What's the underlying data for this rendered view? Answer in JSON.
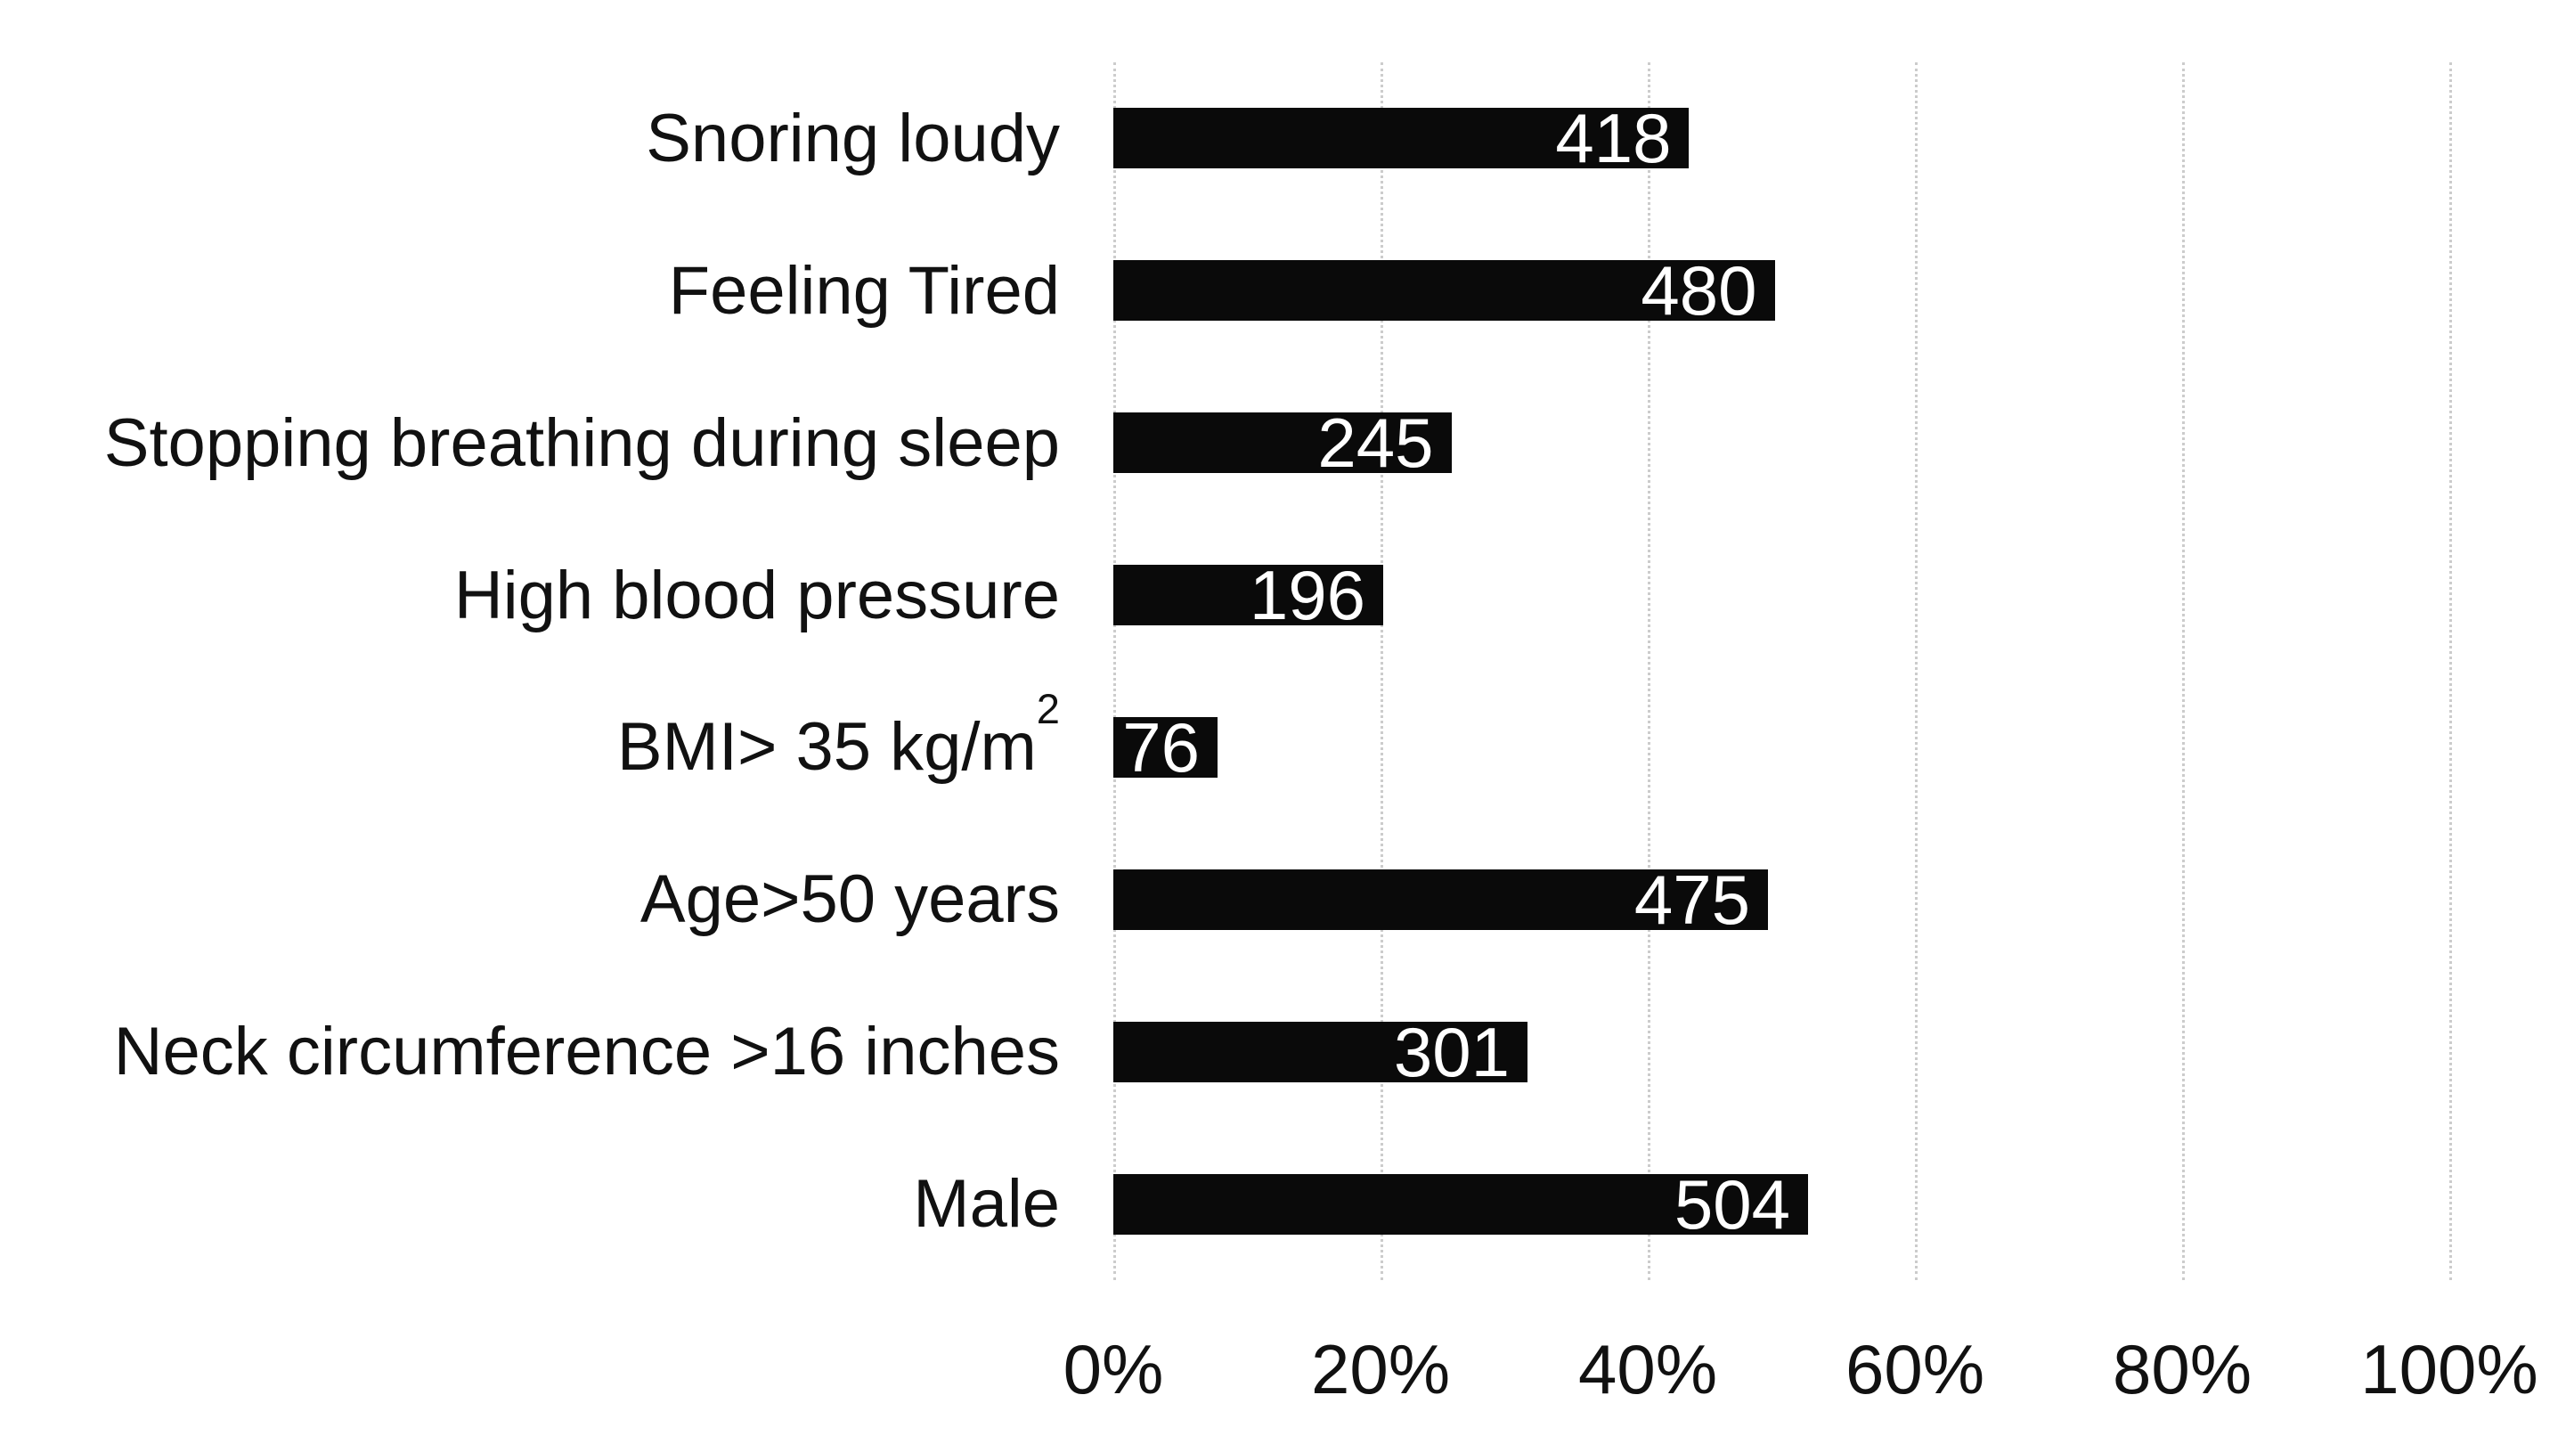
{
  "chart_data": {
    "type": "bar",
    "orientation": "horizontal",
    "title": "",
    "xlabel": "",
    "ylabel": "",
    "xlim": [
      0,
      100
    ],
    "x_tick_unit": "percent",
    "grid": true,
    "legend": false,
    "bar_color": "#0a0a0a",
    "value_label_color": "#ffffff",
    "gridline_color": "#cccccc",
    "x_ticks": [
      {
        "label": "0%",
        "percent": 0
      },
      {
        "label": "20%",
        "percent": 20
      },
      {
        "label": "40%",
        "percent": 40
      },
      {
        "label": "60%",
        "percent": 60
      },
      {
        "label": "80%",
        "percent": 80
      },
      {
        "label": "100%",
        "percent": 100
      }
    ],
    "rows": [
      {
        "label": "Snoring loudy",
        "sup": "",
        "value": "418",
        "percent": 43.1
      },
      {
        "label": "Feeling Tired",
        "sup": "",
        "value": "480",
        "percent": 49.5
      },
      {
        "label": "Stopping breathing during sleep",
        "sup": "",
        "value": "245",
        "percent": 25.3
      },
      {
        "label": "High blood pressure",
        "sup": "",
        "value": "196",
        "percent": 20.2
      },
      {
        "label": "BMI> 35 kg/m",
        "sup": "2",
        "value": "76",
        "percent": 7.8
      },
      {
        "label": "Age>50 years",
        "sup": "",
        "value": "475",
        "percent": 49.0
      },
      {
        "label": "Neck circumference >16 inches",
        "sup": "",
        "value": "301",
        "percent": 31.0
      },
      {
        "label": "Male",
        "sup": "",
        "value": "504",
        "percent": 52.0
      }
    ]
  }
}
